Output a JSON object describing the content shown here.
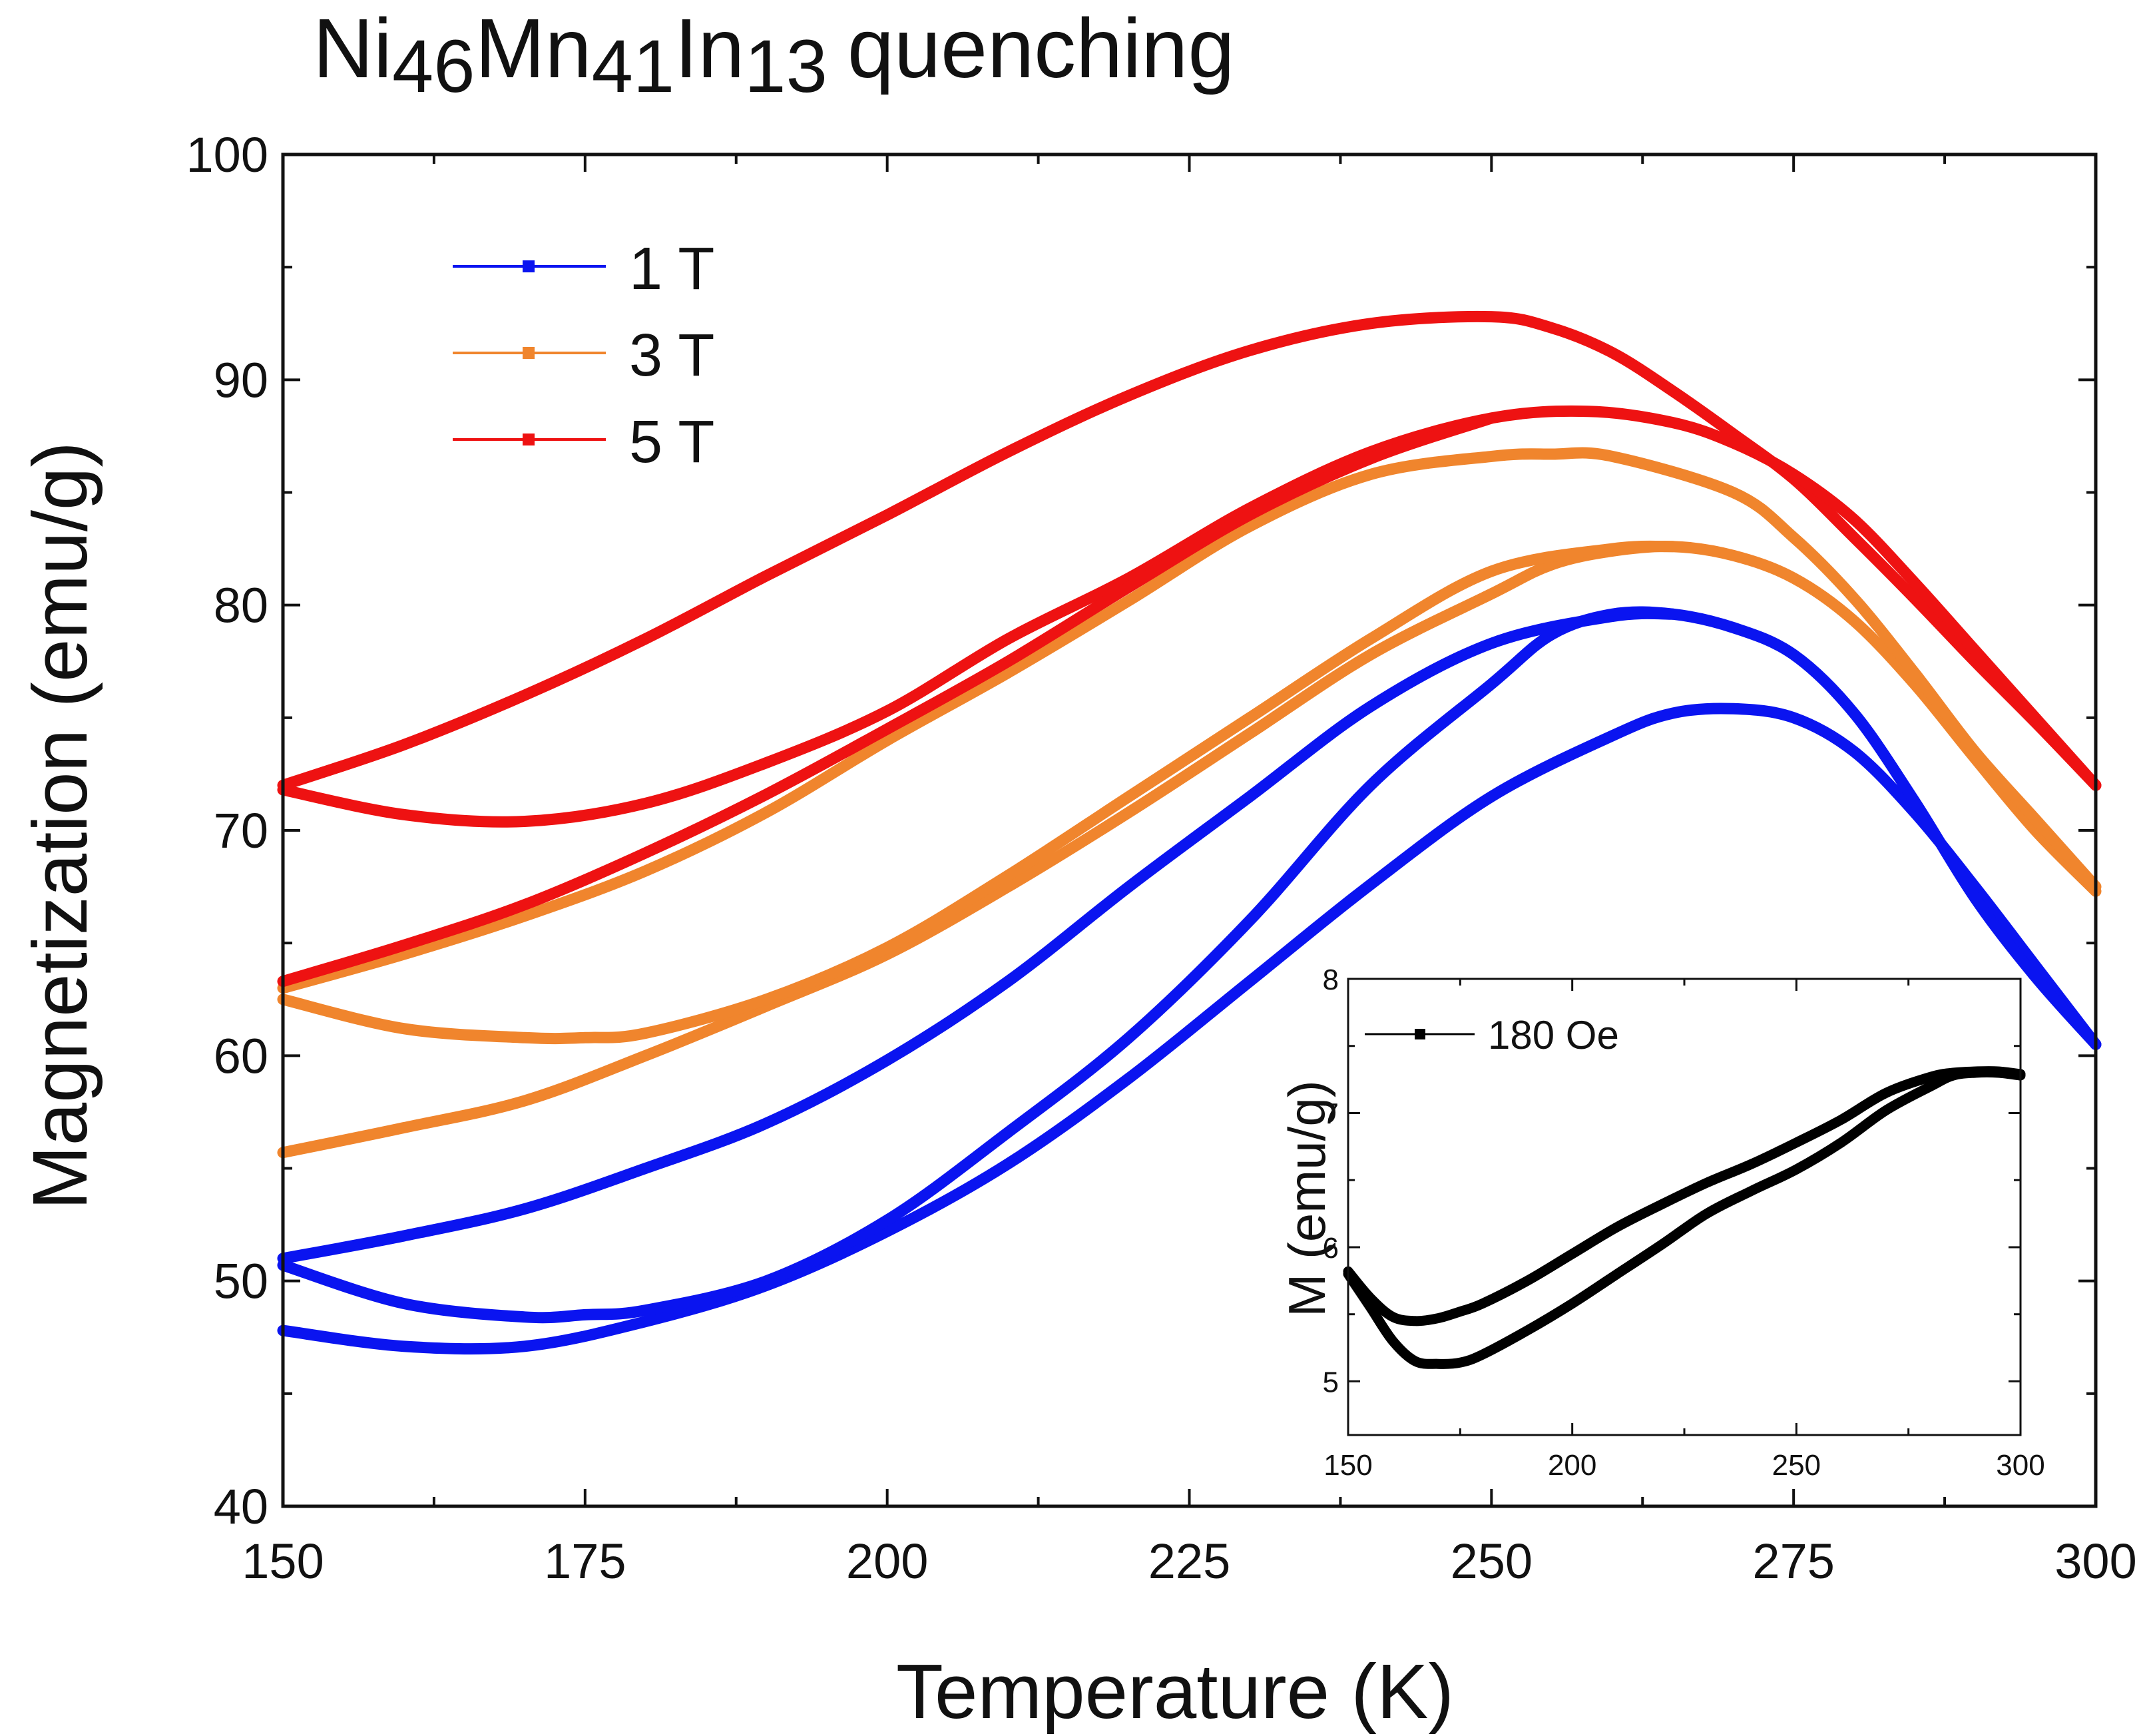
{
  "title": {
    "parts": [
      {
        "text": "Ni",
        "sub": false
      },
      {
        "text": "46",
        "sub": true
      },
      {
        "text": "Mn",
        "sub": false
      },
      {
        "text": "41",
        "sub": true
      },
      {
        "text": "In",
        "sub": false
      },
      {
        "text": "13",
        "sub": true
      },
      {
        "text": "quenching",
        "sub": false,
        "space_before": true
      }
    ]
  },
  "chart_data": [
    {
      "type": "line",
      "title": "Ni46Mn41In13 quenching",
      "xlabel": "Temperature (K)",
      "ylabel": "Magnetization (emu/g)",
      "xlim": [
        150,
        300
      ],
      "ylim": [
        40,
        100
      ],
      "xticks": [
        150,
        175,
        200,
        225,
        250,
        275,
        300
      ],
      "yticks": [
        40,
        50,
        60,
        70,
        80,
        90,
        100
      ],
      "grid": false,
      "legend_position": "top-left",
      "series": [
        {
          "name": "1 T",
          "color": "#0a14f0",
          "branches": [
            {
              "x": [
                150,
                160,
                170,
                180,
                190,
                200,
                210,
                220,
                230,
                240,
                250,
                260,
                265,
                270,
                275,
                280,
                285,
                290,
                295,
                300
              ],
              "y": [
                47.8,
                47.1,
                47.1,
                48.2,
                49.8,
                52.2,
                55.2,
                59.0,
                63.3,
                67.6,
                71.5,
                74.2,
                75.2,
                75.4,
                75.0,
                73.5,
                70.8,
                67.5,
                64.0,
                60.5
              ]
            },
            {
              "x": [
                150,
                160,
                170,
                175,
                180,
                190,
                200,
                210,
                220,
                230,
                240,
                250,
                255,
                260,
                265,
                270,
                275,
                280,
                285,
                290,
                295,
                300
              ],
              "y": [
                50.7,
                49.0,
                48.4,
                48.5,
                48.7,
                50.0,
                52.7,
                56.6,
                60.8,
                66.0,
                72.0,
                76.5,
                78.7,
                79.6,
                79.6,
                79.0,
                77.8,
                75.2,
                71.3,
                67.0,
                63.5,
                60.5
              ]
            },
            {
              "x": [
                150,
                160,
                170,
                180,
                190,
                200,
                210,
                220,
                230,
                240,
                250,
                260,
                265
              ],
              "y": [
                51.0,
                52.0,
                53.2,
                55.0,
                57.0,
                59.8,
                63.3,
                67.5,
                71.5,
                75.5,
                78.3,
                79.5,
                79.6
              ]
            }
          ]
        },
        {
          "name": "3 T",
          "color": "#f0852d",
          "branches": [
            {
              "x": [
                150,
                160,
                170,
                180,
                190,
                200,
                210,
                220,
                230,
                240,
                250,
                255,
                260,
                265,
                270,
                275,
                280,
                285,
                290,
                295,
                300
              ],
              "y": [
                55.7,
                56.8,
                58.0,
                60.0,
                62.2,
                64.5,
                67.5,
                70.8,
                74.3,
                77.8,
                80.5,
                81.8,
                82.4,
                82.6,
                82.2,
                81.2,
                79.3,
                76.5,
                73.2,
                70.0,
                67.3
              ]
            },
            {
              "x": [
                150,
                160,
                170,
                175,
                180,
                190,
                200,
                210,
                220,
                230,
                240,
                250,
                260,
                265
              ],
              "y": [
                62.5,
                61.2,
                60.8,
                60.8,
                61.0,
                62.5,
                64.8,
                68.0,
                71.5,
                75.0,
                78.5,
                81.5,
                82.5,
                82.6
              ]
            },
            {
              "x": [
                150,
                160,
                170,
                180,
                190,
                200,
                210,
                220,
                230,
                240,
                250,
                255,
                260,
                270,
                275,
                280,
                285,
                290,
                295,
                300
              ],
              "y": [
                63.0,
                64.5,
                66.2,
                68.2,
                70.8,
                74.0,
                77.0,
                80.2,
                83.5,
                85.8,
                86.6,
                86.7,
                86.6,
                85.0,
                83.0,
                80.3,
                77.0,
                73.5,
                70.5,
                67.5
              ]
            }
          ]
        },
        {
          "name": "5 T",
          "color": "#ee1212",
          "branches": [
            {
              "x": [
                150,
                160,
                170,
                180,
                190,
                200,
                210,
                220,
                230,
                240,
                250,
                255,
                260,
                265,
                270,
                275,
                280,
                285,
                290,
                295,
                300
              ],
              "y": [
                72.0,
                73.8,
                76.0,
                78.5,
                81.3,
                84.0,
                86.8,
                89.3,
                91.3,
                92.5,
                92.8,
                92.3,
                91.2,
                89.5,
                87.6,
                85.6,
                83.0,
                80.3,
                77.5,
                74.8,
                72.0
              ]
            },
            {
              "x": [
                150,
                160,
                170,
                180,
                190,
                200,
                210,
                220,
                230,
                240,
                250,
                258,
                265,
                270,
                275,
                280,
                285,
                290,
                295,
                300
              ],
              "y": [
                71.8,
                70.7,
                70.4,
                71.2,
                73.0,
                75.3,
                78.5,
                81.2,
                84.3,
                86.8,
                88.3,
                88.6,
                88.1,
                87.2,
                85.8,
                83.8,
                81.0,
                78.0,
                75.0,
                72.0
              ]
            },
            {
              "x": [
                150,
                160,
                170,
                180,
                190,
                200,
                210,
                220,
                230,
                240,
                250
              ],
              "y": [
                63.3,
                64.9,
                66.7,
                69.0,
                71.6,
                74.5,
                77.5,
                80.8,
                84.0,
                86.5,
                88.3
              ]
            }
          ]
        }
      ]
    },
    {
      "type": "line",
      "xlabel": "",
      "ylabel": "M (emu/g)",
      "xlim": [
        150,
        300
      ],
      "ylim": [
        4.6,
        8
      ],
      "xticks": [
        150,
        200,
        250,
        300
      ],
      "yticks": [
        5,
        6,
        7,
        8
      ],
      "grid": false,
      "legend_position": "top-left",
      "series": [
        {
          "name": "180 Oe",
          "color": "#000000",
          "branches": [
            {
              "x": [
                150,
                155,
                160,
                165,
                170,
                175,
                180,
                190,
                200,
                210,
                220,
                230,
                240,
                250,
                260,
                270,
                280,
                285,
                290,
                295,
                300
              ],
              "y": [
                5.8,
                5.55,
                5.3,
                5.15,
                5.13,
                5.14,
                5.2,
                5.38,
                5.58,
                5.8,
                6.02,
                6.25,
                6.42,
                6.58,
                6.78,
                7.02,
                7.2,
                7.28,
                7.3,
                7.3,
                7.28
              ]
            },
            {
              "x": [
                150,
                155,
                160,
                165,
                170,
                175,
                180,
                190,
                200,
                210,
                220,
                230,
                240,
                250,
                260,
                270,
                280,
                285,
                290,
                295,
                300
              ],
              "y": [
                5.82,
                5.62,
                5.48,
                5.45,
                5.47,
                5.52,
                5.58,
                5.75,
                5.95,
                6.15,
                6.32,
                6.48,
                6.62,
                6.78,
                6.95,
                7.15,
                7.27,
                7.3,
                7.31,
                7.31,
                7.29
              ]
            }
          ]
        }
      ]
    }
  ]
}
